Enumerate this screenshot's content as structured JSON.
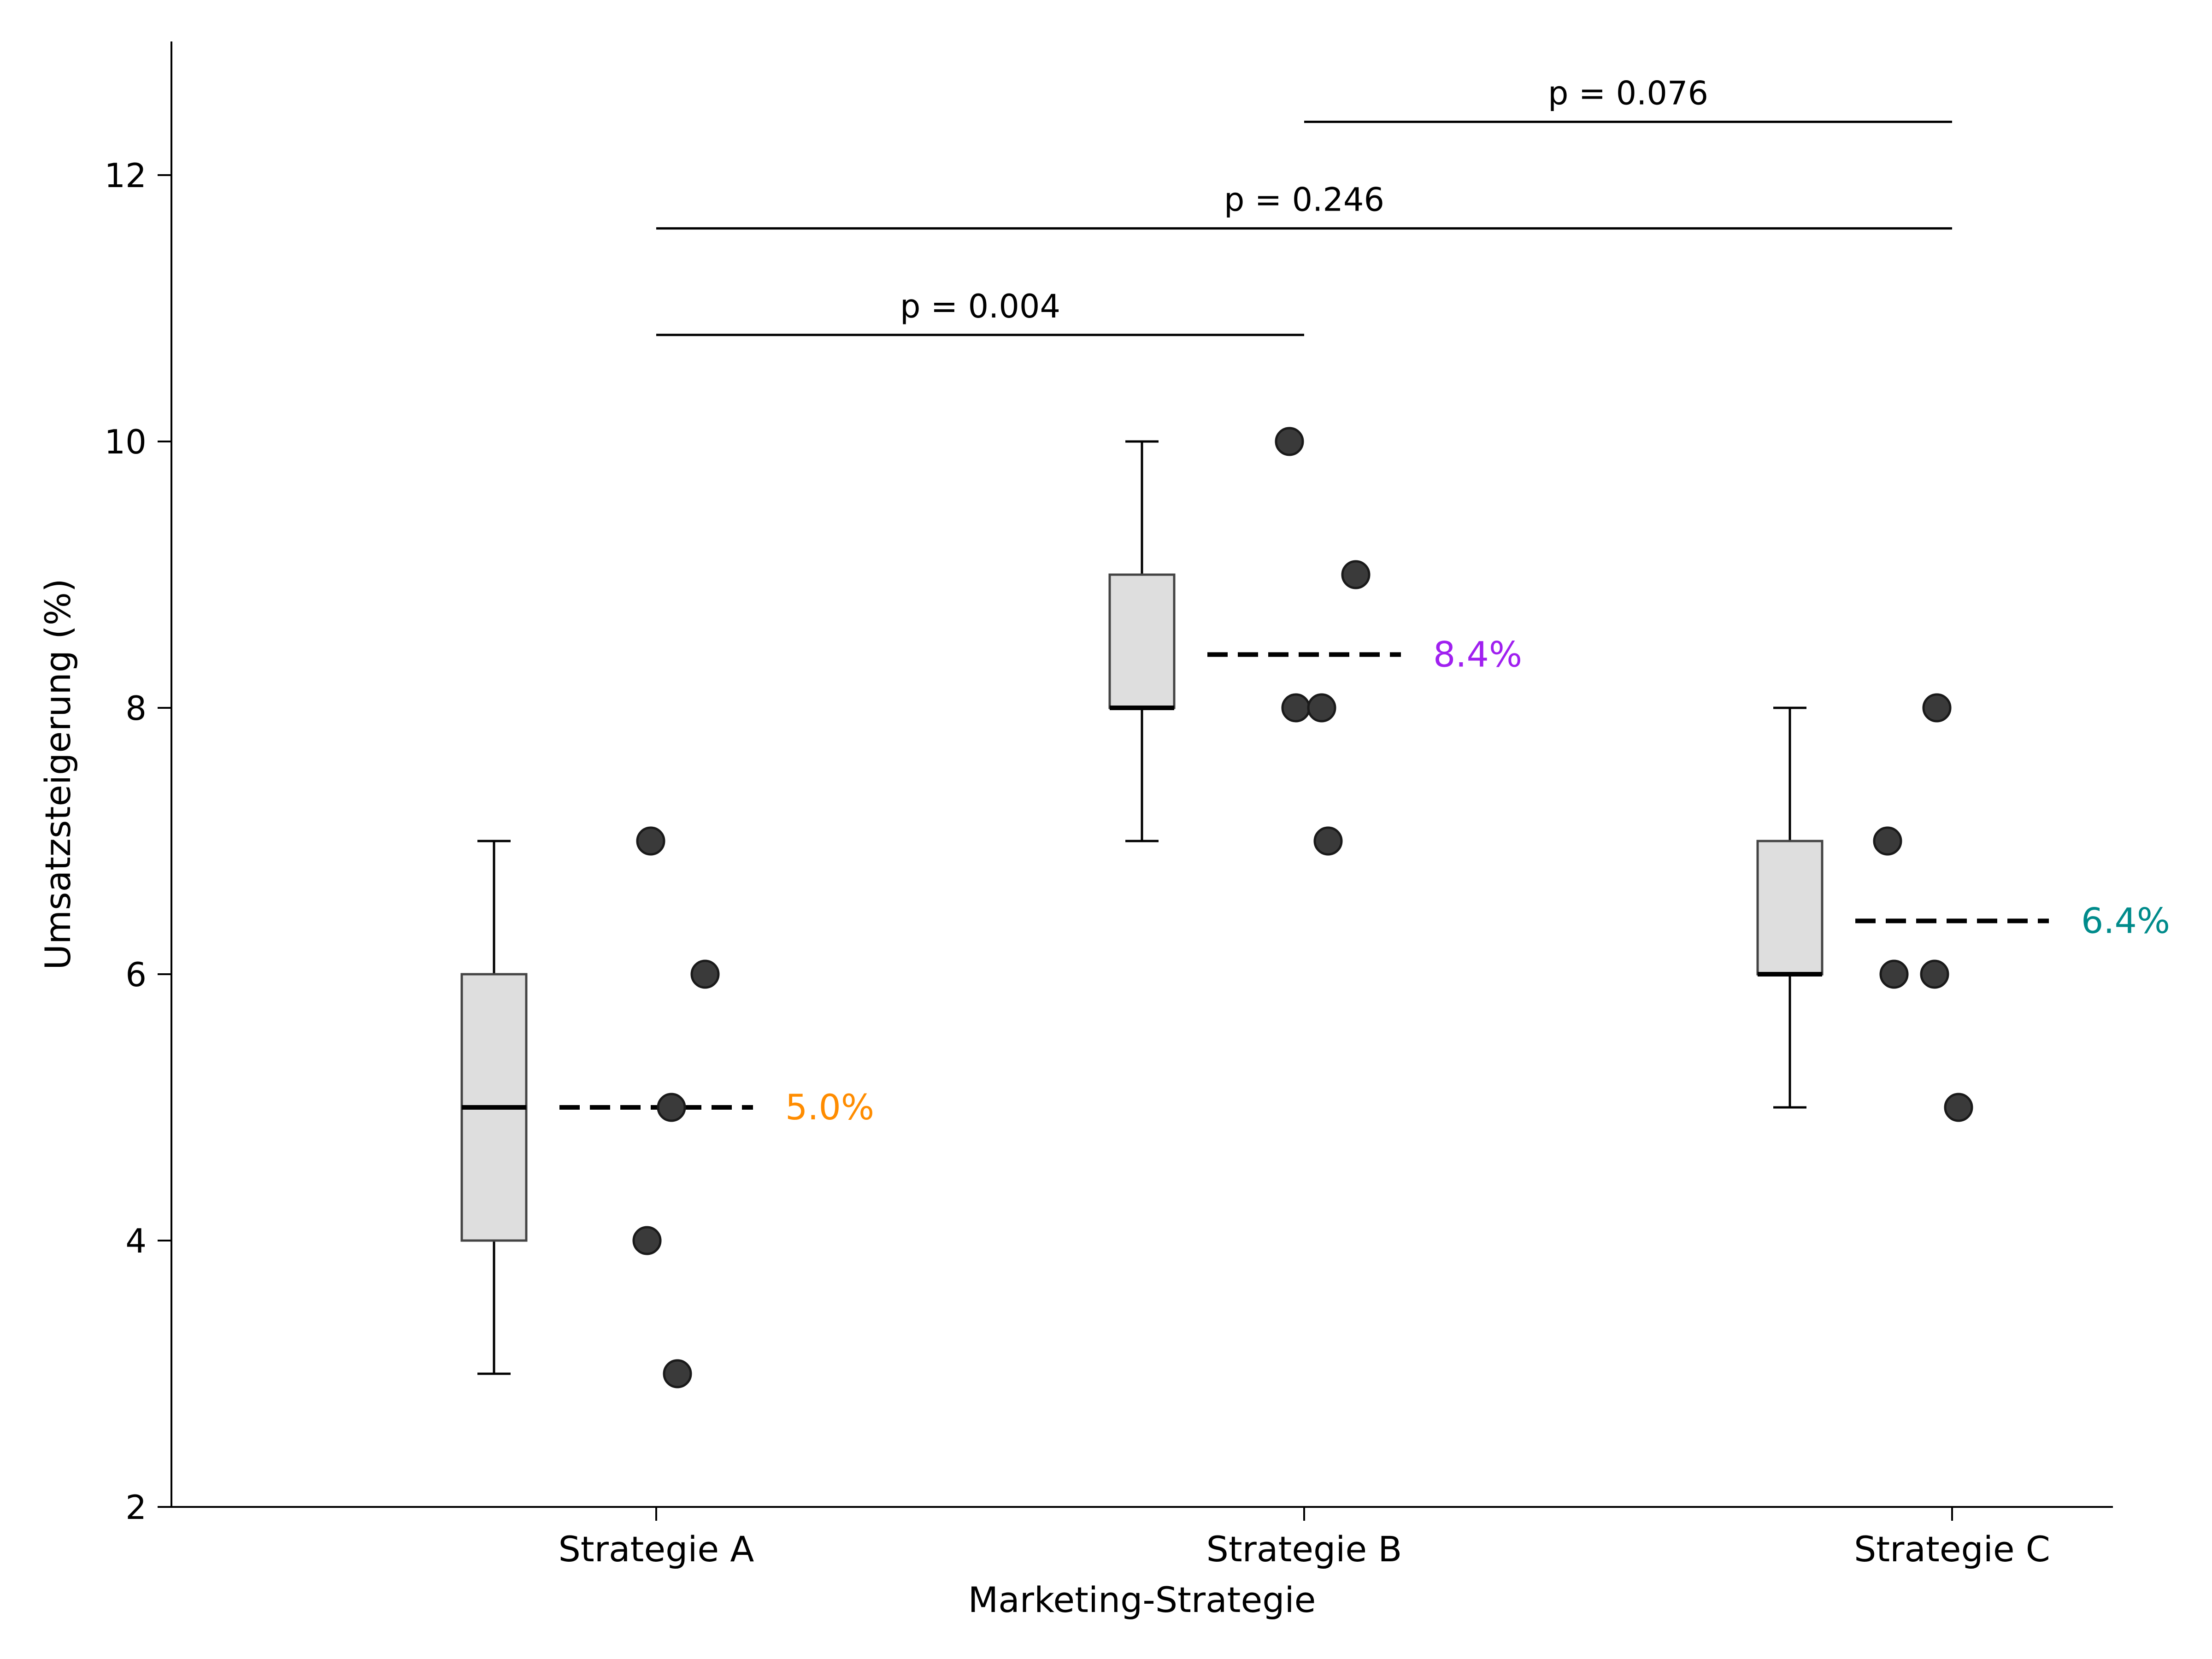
{
  "chart_data": {
    "type": "box",
    "xlabel": "Marketing-Strategie",
    "ylabel": "Umsatzsteigerung (%)",
    "ylim": [
      2,
      13
    ],
    "yticks": [
      2,
      4,
      6,
      8,
      10,
      12
    ],
    "grid": false,
    "categories": [
      "Strategie A",
      "Strategie B",
      "Strategie C"
    ],
    "groups": [
      {
        "name": "Strategie A",
        "whisker_low": 3,
        "q1": 4,
        "median": 5,
        "q3": 6,
        "whisker_high": 7,
        "mean": 5.0,
        "mean_label": "5.0%",
        "mean_color": "#ff8c00",
        "points": [
          7,
          6,
          5,
          4,
          3
        ]
      },
      {
        "name": "Strategie B",
        "whisker_low": 7,
        "q1": 8,
        "median": 8,
        "q3": 9,
        "whisker_high": 10,
        "mean": 8.4,
        "mean_label": "8.4%",
        "mean_color": "#a020f0",
        "points": [
          10,
          9,
          8,
          8,
          7
        ]
      },
      {
        "name": "Strategie C",
        "whisker_low": 5,
        "q1": 6,
        "median": 6,
        "q3": 7,
        "whisker_high": 8,
        "mean": 6.4,
        "mean_label": "6.4%",
        "mean_color": "#008b8b",
        "points": [
          8,
          7,
          6,
          6,
          5
        ]
      }
    ],
    "comparisons": [
      {
        "from": "Strategie A",
        "to": "Strategie B",
        "y": 10.8,
        "label": "p = 0.004"
      },
      {
        "from": "Strategie A",
        "to": "Strategie C",
        "y": 11.6,
        "label": "p = 0.246"
      },
      {
        "from": "Strategie B",
        "to": "Strategie C",
        "y": 12.4,
        "label": "p = 0.076"
      }
    ],
    "colors": {
      "box_fill": "#dedede",
      "box_edge": "#444444",
      "point": "#3a3a3a"
    }
  }
}
